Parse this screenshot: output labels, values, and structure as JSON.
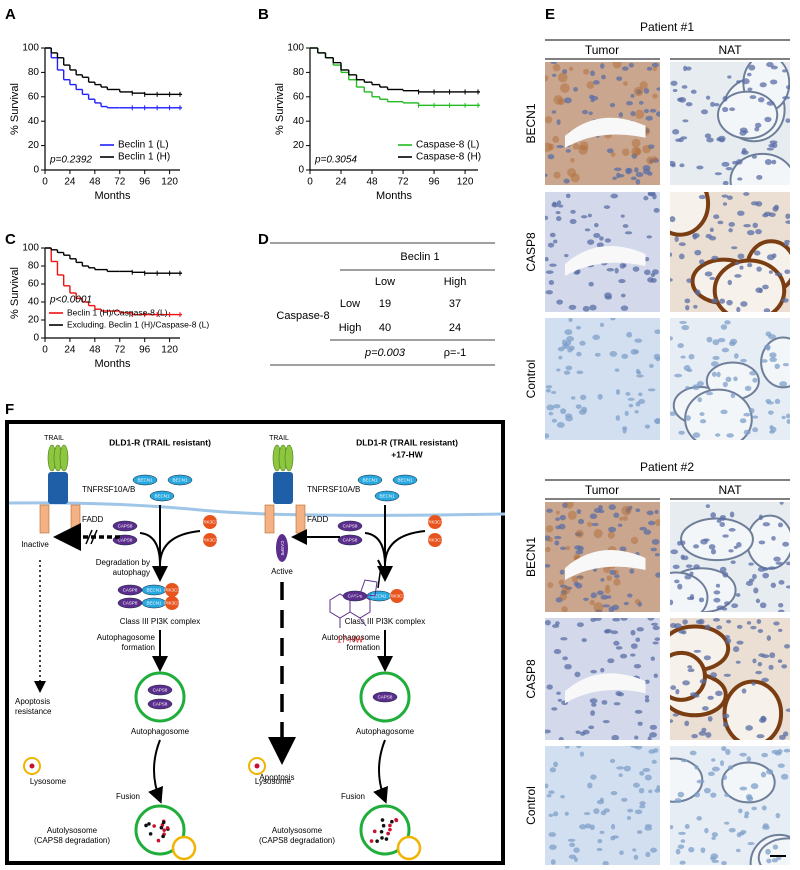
{
  "panel_labels": [
    "A",
    "B",
    "C",
    "D",
    "E",
    "F"
  ],
  "chart_data": [
    {
      "type": "line",
      "x_label": "Months",
      "y_label": "% Survival",
      "annotation": "p=0.2392",
      "legend": "lower right",
      "xlim": [
        0,
        130
      ],
      "ylim": [
        0,
        100
      ],
      "xticks": [
        0,
        24,
        48,
        72,
        96,
        120
      ],
      "yticks": [
        0,
        20,
        40,
        60,
        80,
        100
      ],
      "x": [
        0,
        6,
        12,
        18,
        24,
        30,
        36,
        42,
        48,
        54,
        60,
        72,
        84,
        96,
        108,
        120,
        130
      ],
      "series": [
        {
          "name": "Beclin 1 (L)",
          "color": "#1f1fff",
          "values": [
            100,
            92,
            82,
            74,
            70,
            66,
            62,
            58,
            55,
            52,
            51,
            51,
            51,
            51,
            51,
            51,
            51
          ]
        },
        {
          "name": "Beclin 1 (H)",
          "color": "#000000",
          "values": [
            100,
            96,
            92,
            86,
            82,
            78,
            76,
            72,
            70,
            68,
            66,
            64,
            63,
            62,
            62,
            62,
            62
          ]
        }
      ]
    },
    {
      "type": "line",
      "x_label": "Months",
      "y_label": "% Survival",
      "annotation": "p=0.3054",
      "legend": "lower right",
      "xlim": [
        0,
        130
      ],
      "ylim": [
        0,
        100
      ],
      "xticks": [
        0,
        24,
        48,
        72,
        96,
        120
      ],
      "yticks": [
        0,
        20,
        40,
        60,
        80,
        100
      ],
      "x": [
        0,
        6,
        12,
        18,
        24,
        30,
        36,
        42,
        48,
        54,
        60,
        72,
        84,
        96,
        108,
        120,
        130
      ],
      "series": [
        {
          "name": "Caspase-8 (L)",
          "color": "#22bb22",
          "values": [
            100,
            96,
            92,
            86,
            80,
            74,
            68,
            64,
            60,
            58,
            56,
            55,
            53,
            53,
            53,
            53,
            53
          ]
        },
        {
          "name": "Caspase-8 (H)",
          "color": "#000000",
          "values": [
            100,
            96,
            92,
            88,
            82,
            78,
            74,
            72,
            70,
            68,
            66,
            65,
            64,
            64,
            64,
            64,
            64
          ]
        }
      ]
    },
    {
      "type": "line",
      "x_label": "Months",
      "y_label": "% Survival",
      "annotation": "p<0.0001",
      "legend": "lower left",
      "xlim": [
        0,
        130
      ],
      "ylim": [
        0,
        100
      ],
      "xticks": [
        0,
        24,
        48,
        72,
        96,
        120
      ],
      "yticks": [
        0,
        20,
        40,
        60,
        80,
        100
      ],
      "x": [
        0,
        6,
        12,
        18,
        24,
        30,
        36,
        42,
        48,
        54,
        60,
        72,
        84,
        96,
        108,
        120,
        130
      ],
      "series": [
        {
          "name": "Beclin 1 (H)/Caspase-8 (L)",
          "color": "#ee1111",
          "values": [
            100,
            85,
            70,
            58,
            50,
            44,
            40,
            36,
            32,
            30,
            30,
            28,
            26,
            26,
            26,
            26,
            26
          ]
        },
        {
          "name": "Excluding. Beclin 1 (H)/Caspase-8 (L)",
          "color": "#000000",
          "values": [
            100,
            98,
            95,
            92,
            88,
            84,
            80,
            78,
            76,
            76,
            74,
            74,
            73,
            72,
            72,
            72,
            72
          ]
        }
      ]
    }
  ],
  "table": {
    "header": "Beclin 1",
    "col_headers": [
      "Low",
      "High"
    ],
    "row_group": "Caspase-8",
    "rows": [
      [
        "Low",
        "19",
        "37"
      ],
      [
        "High",
        "40",
        "24"
      ]
    ],
    "footer": [
      "p=0.003",
      "ρ=-1"
    ]
  },
  "staining": [
    {
      "title": "Patient #1",
      "columns": [
        "Tumor",
        "NAT"
      ],
      "rows": [
        "BECN1",
        "CASP8",
        "Control"
      ]
    },
    {
      "title": "Patient #2",
      "columns": [
        "Tumor",
        "NAT"
      ],
      "rows": [
        "BECN1",
        "CASP8",
        "Control"
      ]
    }
  ],
  "diagram": {
    "molecules": {
      "becn1": "BECN1",
      "caps8": "CAPS8",
      "casp8": "CASP8",
      "pik3c3": "PIK3C3"
    },
    "left": {
      "title": [
        "DLD1-R (TRAIL resistant)"
      ],
      "ligand": "TRAIL",
      "receptor": "TNFRSF10A/B",
      "adaptor": "FADD",
      "state": "Inactive",
      "step1": [
        "Degradation by",
        "autophagy"
      ],
      "complex": "Class III PI3K complex",
      "step2": [
        "Autophagosome",
        "formation"
      ],
      "vesicle": "Autophagosome",
      "lysosome": "Lysosome",
      "step3": "Fusion",
      "product": [
        "Autolysosome",
        "(CAPS8 degradation)"
      ],
      "outcome": [
        "Apoptosis",
        "resistance"
      ]
    },
    "right": {
      "title": [
        "DLD1-R (TRAIL resistant)",
        "+17-HW"
      ],
      "ligand": "TRAIL",
      "receptor": "TNFRSF10A/B",
      "adaptor": "FADD",
      "state": "Active",
      "drug": "17-HW",
      "complex": "Class III PI3K complex",
      "step2": [
        "Autophagosome",
        "formation"
      ],
      "vesicle": "Autophagosome",
      "lysosome": "Lysosome",
      "step3": "Fusion",
      "product": [
        "Autolysosome",
        "(CAPS8 degradation)"
      ],
      "outcome": [
        "Apoptosis"
      ]
    }
  }
}
